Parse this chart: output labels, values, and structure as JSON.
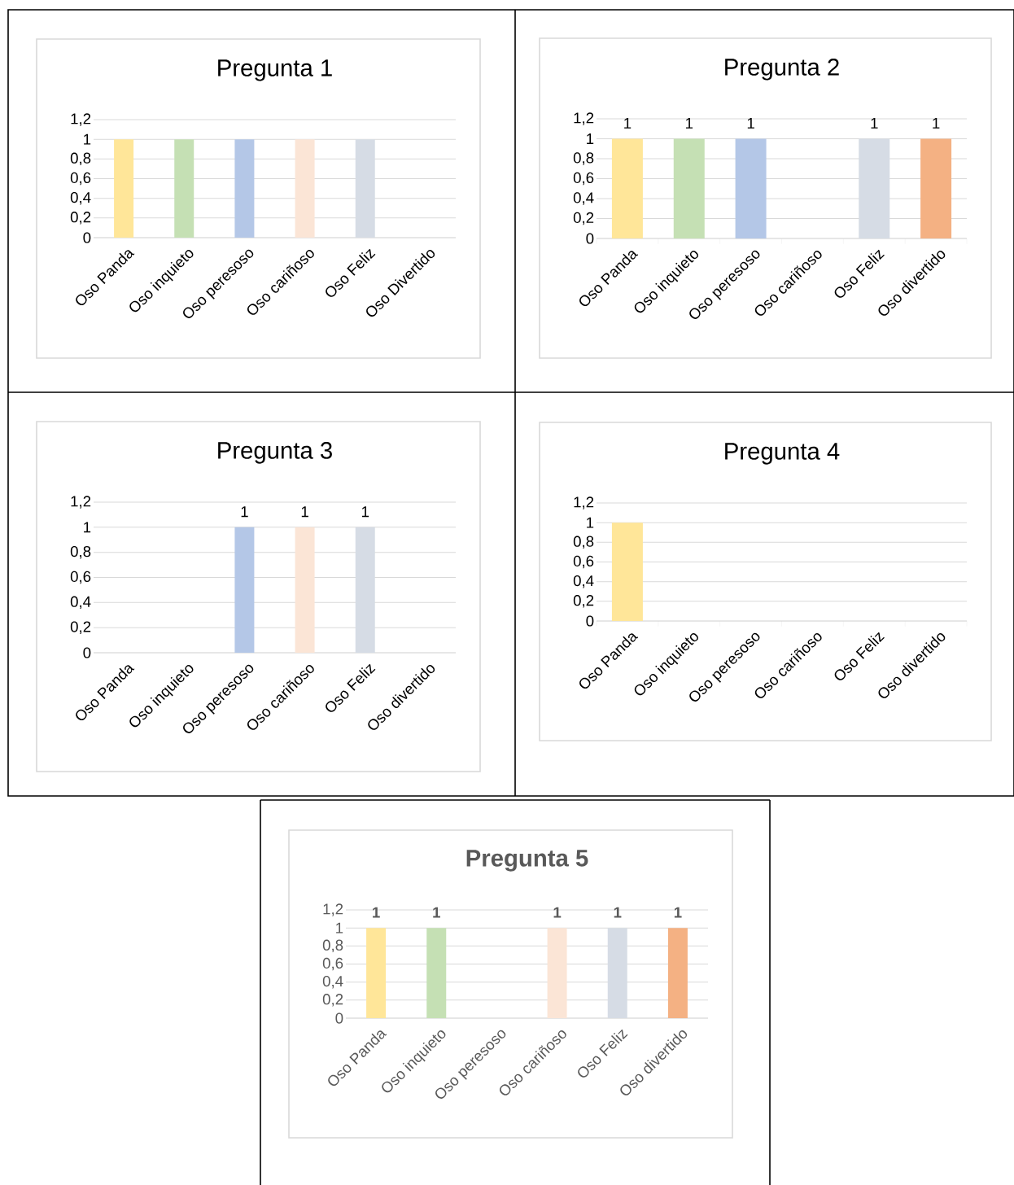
{
  "chart_data": [
    {
      "type": "bar",
      "title": "Pregunta 1",
      "categories": [
        "Oso Panda",
        "Oso inquieto",
        "Oso peresoso",
        "Oso cariñoso",
        "Oso Feliz",
        "Oso Divertido"
      ],
      "values": [
        1,
        1,
        1,
        1,
        1,
        0
      ],
      "colors": [
        "#ffe699",
        "#c5e0b4",
        "#b4c7e7",
        "#fbe5d6",
        "#d6dce5",
        "#f4b183"
      ],
      "ylim": [
        0,
        1.2
      ],
      "yticks": [
        0,
        {
          "value": 0.2,
          "label": "0,2"
        },
        {
          "value": 0.4,
          "label": "0,4"
        },
        {
          "value": 0.6,
          "label": "0,6"
        },
        {
          "value": 0.8,
          "label": "0,8"
        },
        1,
        {
          "value": 1.2,
          "label": "1,2"
        }
      ],
      "grid": "y"
    },
    {
      "type": "bar",
      "title": "Pregunta 2",
      "categories": [
        "Oso Panda",
        "Oso inquieto",
        "Oso peresoso",
        "Oso cariñoso",
        "Oso Feliz",
        "Oso divertido"
      ],
      "values": [
        1,
        1,
        1,
        0,
        1,
        1
      ],
      "value_labels": [
        "1",
        "1",
        "1",
        null,
        "1",
        "1"
      ],
      "colors": [
        "#ffe699",
        "#c5e0b4",
        "#b4c7e7",
        "#fbe5d6",
        "#d6dce5",
        "#f4b183"
      ],
      "ylim": [
        0,
        1.2
      ],
      "yticks": [
        0,
        {
          "value": 0.2,
          "label": "0,2"
        },
        {
          "value": 0.4,
          "label": "0,4"
        },
        {
          "value": 0.6,
          "label": "0,6"
        },
        {
          "value": 0.8,
          "label": "0,8"
        },
        1,
        {
          "value": 1.2,
          "label": "1,2"
        }
      ],
      "grid": "y"
    },
    {
      "type": "bar",
      "title": "Pregunta 3",
      "categories": [
        "Oso Panda",
        "Oso inquieto",
        "Oso peresoso",
        "Oso cariñoso",
        "Oso Feliz",
        "Oso divertido"
      ],
      "values": [
        0,
        0,
        1,
        1,
        1,
        0
      ],
      "value_labels": [
        null,
        null,
        "1",
        "1",
        "1",
        null
      ],
      "colors": [
        "#ffe699",
        "#c5e0b4",
        "#b4c7e7",
        "#fbe5d6",
        "#d6dce5",
        "#f4b183"
      ],
      "ylim": [
        0,
        1.2
      ],
      "yticks": [
        0,
        {
          "value": 0.2,
          "label": "0,2"
        },
        {
          "value": 0.4,
          "label": "0,4"
        },
        {
          "value": 0.6,
          "label": "0,6"
        },
        {
          "value": 0.8,
          "label": "0,8"
        },
        1,
        {
          "value": 1.2,
          "label": "1,2"
        }
      ],
      "grid": "y"
    },
    {
      "type": "bar",
      "title": "Pregunta 4",
      "categories": [
        "Oso Panda",
        "Oso inquieto",
        "Oso peresoso",
        "Oso cariñoso",
        "Oso Feliz",
        "Oso divertido"
      ],
      "values": [
        1,
        0,
        0,
        0,
        0,
        0
      ],
      "colors": [
        "#ffe699",
        "#c5e0b4",
        "#b4c7e7",
        "#fbe5d6",
        "#d6dce5",
        "#f4b183"
      ],
      "ylim": [
        0,
        1.2
      ],
      "yticks": [
        0,
        {
          "value": 0.2,
          "label": "0,2"
        },
        {
          "value": 0.4,
          "label": "0,4"
        },
        {
          "value": 0.6,
          "label": "0,6"
        },
        {
          "value": 0.8,
          "label": "0,8"
        },
        1,
        {
          "value": 1.2,
          "label": "1,2"
        }
      ],
      "grid": "y"
    },
    {
      "type": "bar",
      "title": "Pregunta 5",
      "categories": [
        "Oso Panda",
        "Oso inquieto",
        "Oso peresoso",
        "Oso cariñoso",
        "Oso Feliz",
        "Oso divertido"
      ],
      "values": [
        1,
        1,
        0,
        1,
        1,
        1
      ],
      "value_labels": [
        "1",
        "1",
        null,
        "1",
        "1",
        "1"
      ],
      "colors": [
        "#ffe699",
        "#c5e0b4",
        "#b4c7e7",
        "#fbe5d6",
        "#d6dce5",
        "#f4b183"
      ],
      "ylim": [
        0,
        1.2
      ],
      "yticks": [
        0,
        {
          "value": 0.2,
          "label": "0,2"
        },
        {
          "value": 0.4,
          "label": "0,4"
        },
        {
          "value": 0.6,
          "label": "0,6"
        },
        {
          "value": 0.8,
          "label": "0,8"
        },
        1,
        {
          "value": 1.2,
          "label": "1,2"
        }
      ],
      "grid": "y"
    }
  ]
}
